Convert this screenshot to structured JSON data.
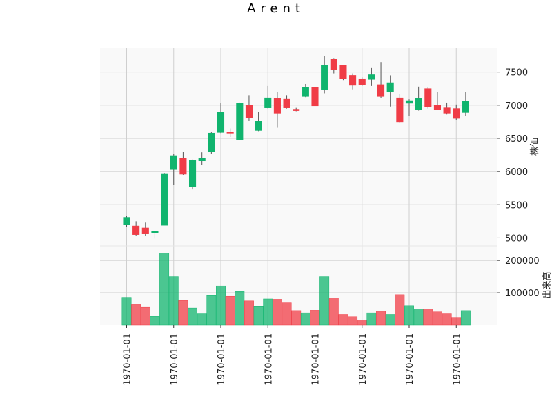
{
  "chart_data": {
    "type": "candlestick",
    "title": "Arent",
    "colors": {
      "up": "#10b46e",
      "down": "#f03c46",
      "wick": "#555555",
      "grid": "#cfcfcf",
      "panel_bg": "#f9f9f9"
    },
    "price_panel": {
      "ylabel": "株価",
      "ylim": [
        4880,
        7870
      ],
      "yticks": [
        5000,
        5500,
        6000,
        6500,
        7000,
        7500
      ],
      "ytick_labels": [
        "5000",
        "5500",
        "6000",
        "6500",
        "7000",
        "7500"
      ]
    },
    "volume_panel": {
      "ylabel": "出来高",
      "ylim": [
        0,
        245000
      ],
      "yticks": [
        100000,
        200000
      ],
      "ytick_labels": [
        "100000",
        "200000"
      ]
    },
    "x_ticks": [
      1,
      6,
      11,
      16,
      21,
      26,
      31,
      36
    ],
    "x_tick_labels": [
      "1970-01-01",
      "1970-01-01",
      "1970-01-01",
      "1970-01-01",
      "1970-01-01",
      "1970-01-01",
      "1970-01-01",
      "1970-01-01"
    ],
    "candles": [
      {
        "o": 5200,
        "h": 5330,
        "l": 5170,
        "c": 5310,
        "v": 86000
      },
      {
        "o": 5180,
        "h": 5250,
        "l": 5030,
        "c": 5050,
        "v": 63000
      },
      {
        "o": 5150,
        "h": 5230,
        "l": 5030,
        "c": 5060,
        "v": 55000
      },
      {
        "o": 5070,
        "h": 5100,
        "l": 4990,
        "c": 5100,
        "v": 27000
      },
      {
        "o": 5190,
        "h": 5980,
        "l": 5190,
        "c": 5970,
        "v": 223000
      },
      {
        "o": 6030,
        "h": 6270,
        "l": 5800,
        "c": 6240,
        "v": 150000
      },
      {
        "o": 6200,
        "h": 6300,
        "l": 5950,
        "c": 5960,
        "v": 76000
      },
      {
        "o": 5770,
        "h": 6180,
        "l": 5730,
        "c": 6170,
        "v": 53000
      },
      {
        "o": 6160,
        "h": 6290,
        "l": 6100,
        "c": 6200,
        "v": 35000
      },
      {
        "o": 6300,
        "h": 6600,
        "l": 6270,
        "c": 6580,
        "v": 91000
      },
      {
        "o": 6590,
        "h": 7030,
        "l": 6580,
        "c": 6900,
        "v": 121000
      },
      {
        "o": 6600,
        "h": 6650,
        "l": 6520,
        "c": 6590,
        "v": 89000
      },
      {
        "o": 6480,
        "h": 7040,
        "l": 6470,
        "c": 7030,
        "v": 104000
      },
      {
        "o": 7000,
        "h": 7150,
        "l": 6770,
        "c": 6810,
        "v": 75000
      },
      {
        "o": 6620,
        "h": 6900,
        "l": 6610,
        "c": 6760,
        "v": 57000
      },
      {
        "o": 6960,
        "h": 7290,
        "l": 6950,
        "c": 7110,
        "v": 81000
      },
      {
        "o": 7100,
        "h": 7200,
        "l": 6660,
        "c": 6880,
        "v": 80000
      },
      {
        "o": 7090,
        "h": 7150,
        "l": 6950,
        "c": 6960,
        "v": 69000
      },
      {
        "o": 6940,
        "h": 6960,
        "l": 6910,
        "c": 6920,
        "v": 45000
      },
      {
        "o": 7130,
        "h": 7320,
        "l": 7120,
        "c": 7270,
        "v": 38000
      },
      {
        "o": 7270,
        "h": 7290,
        "l": 6980,
        "c": 6990,
        "v": 46000
      },
      {
        "o": 7240,
        "h": 7740,
        "l": 7180,
        "c": 7600,
        "v": 150000
      },
      {
        "o": 7700,
        "h": 7710,
        "l": 7480,
        "c": 7540,
        "v": 84000
      },
      {
        "o": 7600,
        "h": 7610,
        "l": 7380,
        "c": 7400,
        "v": 33000
      },
      {
        "o": 7450,
        "h": 7480,
        "l": 7240,
        "c": 7300,
        "v": 26000
      },
      {
        "o": 7400,
        "h": 7420,
        "l": 7290,
        "c": 7310,
        "v": 16000
      },
      {
        "o": 7390,
        "h": 7560,
        "l": 7290,
        "c": 7460,
        "v": 38000
      },
      {
        "o": 7310,
        "h": 7650,
        "l": 7110,
        "c": 7130,
        "v": 43000
      },
      {
        "o": 7200,
        "h": 7450,
        "l": 6980,
        "c": 7340,
        "v": 33000
      },
      {
        "o": 7110,
        "h": 7170,
        "l": 6740,
        "c": 6750,
        "v": 94000
      },
      {
        "o": 7030,
        "h": 7090,
        "l": 6840,
        "c": 7070,
        "v": 60000
      },
      {
        "o": 6930,
        "h": 7280,
        "l": 6920,
        "c": 7100,
        "v": 50000
      },
      {
        "o": 7250,
        "h": 7270,
        "l": 6950,
        "c": 6970,
        "v": 50000
      },
      {
        "o": 7000,
        "h": 7200,
        "l": 6930,
        "c": 6930,
        "v": 41000
      },
      {
        "o": 6960,
        "h": 7040,
        "l": 6860,
        "c": 6880,
        "v": 35000
      },
      {
        "o": 6950,
        "h": 7010,
        "l": 6780,
        "c": 6800,
        "v": 22000
      },
      {
        "o": 6890,
        "h": 7200,
        "l": 6840,
        "c": 7060,
        "v": 45000
      }
    ]
  }
}
